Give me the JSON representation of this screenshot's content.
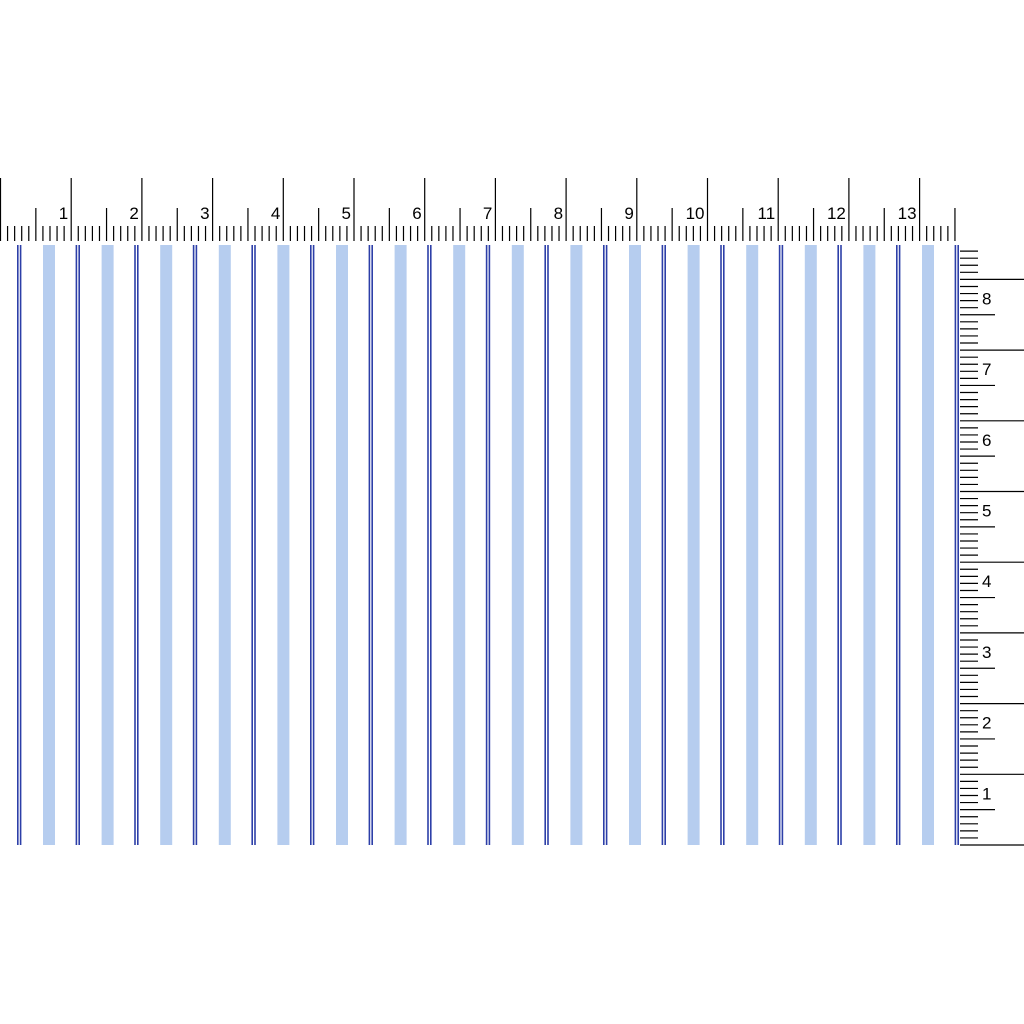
{
  "top_ruler": {
    "labels": [
      "1",
      "2",
      "3",
      "4",
      "5",
      "6",
      "7",
      "8",
      "9",
      "10",
      "11",
      "12",
      "13"
    ]
  },
  "right_ruler": {
    "labels": [
      "1",
      "2",
      "3",
      "4",
      "5",
      "6",
      "7",
      "8"
    ]
  },
  "fabric": {
    "pattern": "vertical stripes",
    "colors": {
      "background": "#ffffff",
      "dark_stripe": "#2d3fa8",
      "light_stripe": "#a9c4ec"
    }
  }
}
